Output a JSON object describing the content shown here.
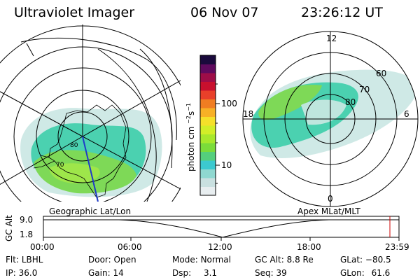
{
  "header": {
    "instrument": "Ultraviolet Imager",
    "date": "06 Nov 07",
    "time": "23:26:12 UT"
  },
  "colorbar": {
    "unit_label": "photon cm",
    "unit_sup1": "−2",
    "unit_mid": "s",
    "unit_sup2": "−1",
    "tick_high": "100",
    "tick_low": "10",
    "colors": [
      "#e8eef0",
      "#c9e0e0",
      "#8fd8d0",
      "#3cc9cf",
      "#54cf7d",
      "#7bdc3a",
      "#a8e82c",
      "#d2ee28",
      "#f5e02a",
      "#f7b026",
      "#f07d22",
      "#e8402a",
      "#c8102e",
      "#9e0d48",
      "#5f0a5e",
      "#1a0a3c"
    ]
  },
  "left_panel": {
    "label": "Geographic Lat/Lon",
    "lat_labels": [
      "80",
      "70"
    ],
    "aurora_colors": [
      "#7ed957",
      "#9ee64a",
      "#4bd1b0",
      "#cfe9e6"
    ]
  },
  "right_panel": {
    "label": "Apex MLat/MLT",
    "mlt_labels": [
      "12",
      "18",
      "6",
      "0"
    ],
    "mlat_labels": [
      "60",
      "70",
      "80"
    ]
  },
  "timeline": {
    "ylabel": "GC Alt",
    "y_ticks": [
      "9.0",
      "1.8"
    ],
    "x_ticks": [
      "00:00",
      "06:00",
      "12:00",
      "18:00",
      "23:59"
    ],
    "marker_color": "#cc0000"
  },
  "status": {
    "filter_label": "Flt:",
    "filter_value": "LBHL",
    "ip_label": "IP:",
    "ip_value": "36.0",
    "door_label": "Door:",
    "door_value": "Open",
    "gain_label": "Gain:",
    "gain_value": "14",
    "mode_label": "Mode:",
    "mode_value": "Normal",
    "dsp_label": "Dsp:",
    "dsp_value": "3.1",
    "gcalt_label": "GC Alt:",
    "gcalt_value": "8.8 Re",
    "seq_label": "Seq:",
    "seq_value": "39",
    "glat_label": "GLat:",
    "glat_value": "−80.5",
    "glon_label": "GLon:",
    "glon_value": "61.6"
  }
}
